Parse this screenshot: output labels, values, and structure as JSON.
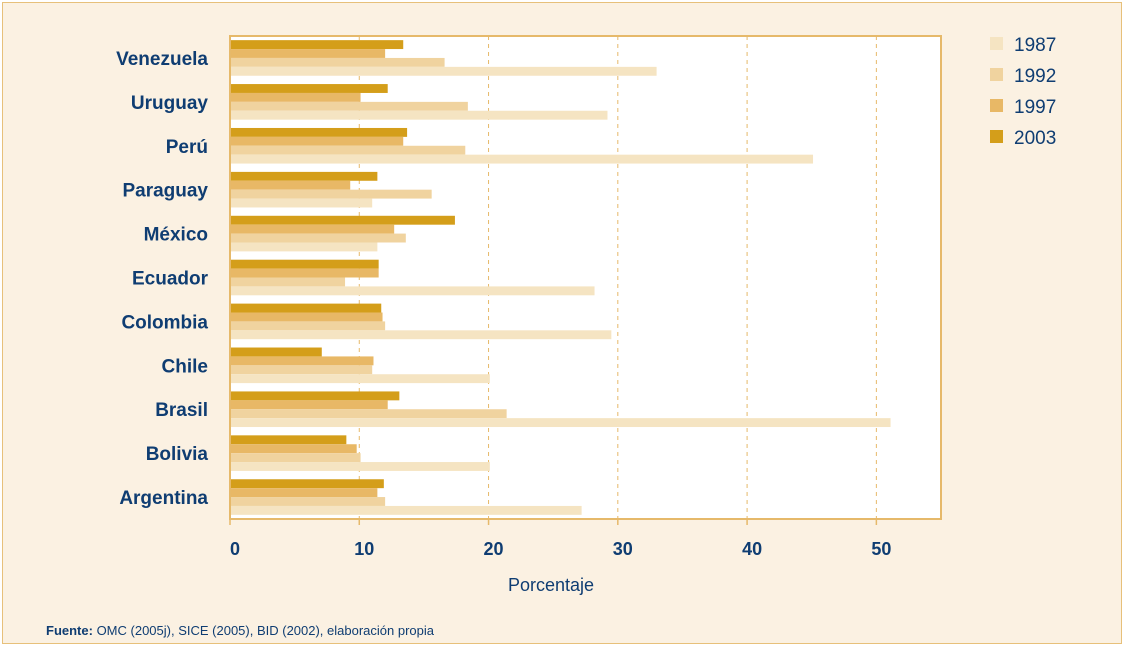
{
  "chart_data": {
    "type": "bar",
    "orientation": "horizontal",
    "categories": [
      "Venezuela",
      "Uruguay",
      "Perú",
      "Paraguay",
      "México",
      "Ecuador",
      "Colombia",
      "Chile",
      "Brasil",
      "Bolivia",
      "Argentina"
    ],
    "series": [
      {
        "name": "1987",
        "color": "#f5e4c2",
        "values": [
          33.0,
          29.2,
          45.1,
          11.0,
          11.4,
          28.2,
          29.5,
          20.1,
          51.1,
          20.1,
          27.2
        ]
      },
      {
        "name": "1992",
        "color": "#f0d39f",
        "values": [
          16.6,
          18.4,
          18.2,
          15.6,
          13.6,
          8.9,
          12.0,
          11.0,
          21.4,
          10.1,
          12.0
        ]
      },
      {
        "name": "1997",
        "color": "#e8b866",
        "values": [
          12.0,
          10.1,
          13.4,
          9.3,
          12.7,
          11.5,
          11.8,
          11.1,
          12.2,
          9.8,
          11.4
        ]
      },
      {
        "name": "2003",
        "color": "#d49e1a",
        "values": [
          13.4,
          12.2,
          13.7,
          11.4,
          17.4,
          11.5,
          11.7,
          7.1,
          13.1,
          9.0,
          11.9
        ]
      }
    ],
    "xlabel": "Porcentaje",
    "xlim": [
      0,
      55
    ],
    "xticks": [
      0,
      10,
      20,
      30,
      40,
      50
    ],
    "grid": "vertical dashed",
    "legend": "top-right"
  },
  "source": {
    "label": "Fuente:",
    "text": " OMC (2005j), SICE (2005), BID (2002), elaboración propia"
  }
}
